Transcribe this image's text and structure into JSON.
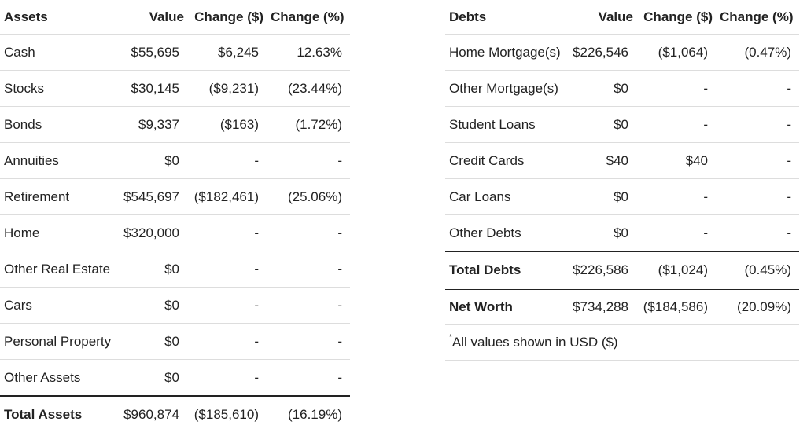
{
  "assets": {
    "headers": [
      "Assets",
      "Value",
      "Change ($)",
      "Change (%)"
    ],
    "rows": [
      {
        "label": "Cash",
        "value": "$55,695",
        "change_amt": "$6,245",
        "change_pct": "12.63%"
      },
      {
        "label": "Stocks",
        "value": "$30,145",
        "change_amt": "($9,231)",
        "change_pct": "(23.44%)"
      },
      {
        "label": "Bonds",
        "value": "$9,337",
        "change_amt": "($163)",
        "change_pct": "(1.72%)"
      },
      {
        "label": "Annuities",
        "value": "$0",
        "change_amt": "-",
        "change_pct": "-"
      },
      {
        "label": "Retirement",
        "value": "$545,697",
        "change_amt": "($182,461)",
        "change_pct": "(25.06%)"
      },
      {
        "label": "Home",
        "value": "$320,000",
        "change_amt": "-",
        "change_pct": "-"
      },
      {
        "label": "Other Real Estate",
        "value": "$0",
        "change_amt": "-",
        "change_pct": "-"
      },
      {
        "label": "Cars",
        "value": "$0",
        "change_amt": "-",
        "change_pct": "-"
      },
      {
        "label": "Personal Property",
        "value": "$0",
        "change_amt": "-",
        "change_pct": "-"
      },
      {
        "label": "Other Assets",
        "value": "$0",
        "change_amt": "-",
        "change_pct": "-"
      }
    ],
    "total": {
      "label": "Total Assets",
      "value": "$960,874",
      "change_amt": "($185,610)",
      "change_pct": "(16.19%)"
    }
  },
  "debts": {
    "headers": [
      "Debts",
      "Value",
      "Change ($)",
      "Change (%)"
    ],
    "rows": [
      {
        "label": "Home Mortgage(s)",
        "value": "$226,546",
        "change_amt": "($1,064)",
        "change_pct": "(0.47%)"
      },
      {
        "label": "Other Mortgage(s)",
        "value": "$0",
        "change_amt": "-",
        "change_pct": "-"
      },
      {
        "label": "Student Loans",
        "value": "$0",
        "change_amt": "-",
        "change_pct": "-"
      },
      {
        "label": "Credit Cards",
        "value": "$40",
        "change_amt": "$40",
        "change_pct": "-"
      },
      {
        "label": "Car Loans",
        "value": "$0",
        "change_amt": "-",
        "change_pct": "-"
      },
      {
        "label": "Other Debts",
        "value": "$0",
        "change_amt": "-",
        "change_pct": "-"
      }
    ],
    "total": {
      "label": "Total Debts",
      "value": "$226,586",
      "change_amt": "($1,024)",
      "change_pct": "(0.45%)"
    },
    "net_worth": {
      "label": "Net Worth",
      "value": "$734,288",
      "change_amt": "($184,586)",
      "change_pct": "(20.09%)"
    },
    "note": {
      "marker": "*",
      "text": "All values shown in USD ($)"
    }
  }
}
